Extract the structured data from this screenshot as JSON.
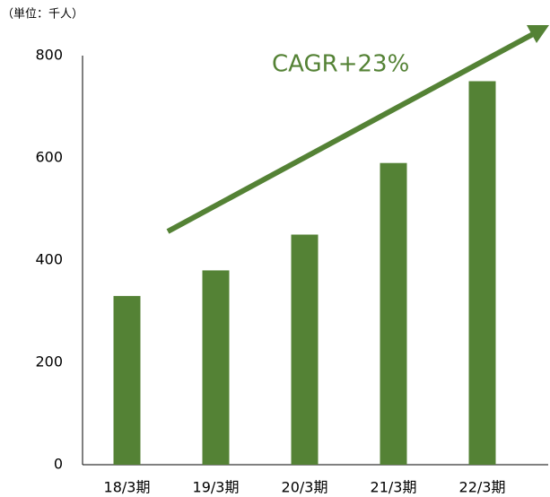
{
  "chart_data": {
    "type": "bar",
    "unit_label": "（単位：千人）",
    "annotation": "CAGR+23%",
    "categories": [
      "18/3期",
      "19/3期",
      "20/3期",
      "21/3期",
      "22/3期"
    ],
    "values": [
      330,
      380,
      450,
      590,
      750
    ],
    "color": "#548235",
    "ylim": [
      0,
      800
    ],
    "yticks": [
      0,
      200,
      400,
      600,
      800
    ],
    "grid": false
  }
}
